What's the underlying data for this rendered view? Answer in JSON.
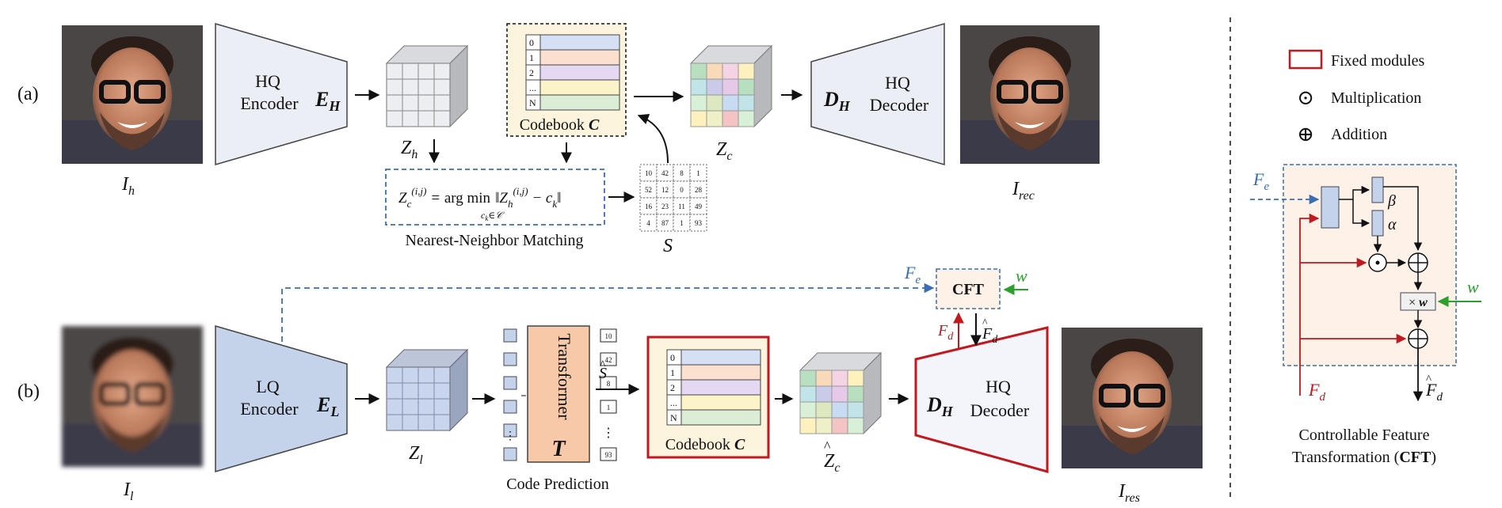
{
  "panel_a": {
    "label": "(a)",
    "encoder": {
      "line1": "HQ",
      "line2": "Encoder",
      "symbol": "E",
      "sub": "H"
    },
    "decoder": {
      "line1": "HQ",
      "line2": "Decoder",
      "symbol": "D",
      "sub": "H"
    },
    "input_label": {
      "base": "I",
      "sub": "h"
    },
    "output_label": {
      "base": "I",
      "sub": "rec"
    },
    "zh_label": {
      "base": "Z",
      "sub": "h"
    },
    "zc_label": {
      "base": "Z",
      "sub": "c"
    },
    "codebook": {
      "indices": [
        "0",
        "1",
        "2",
        "...",
        "N"
      ],
      "label": "Codebook",
      "symbol": "C"
    },
    "matching_caption": "Nearest-Neighbor Matching",
    "s_grid": [
      [
        "10",
        "42",
        "8",
        "1"
      ],
      [
        "52",
        "12",
        "0",
        "28"
      ],
      [
        "16",
        "23",
        "11",
        "49"
      ],
      [
        "4",
        "87",
        "1",
        "93"
      ]
    ],
    "s_label": "S"
  },
  "panel_b": {
    "label": "(b)",
    "encoder": {
      "line1": "LQ",
      "line2": "Encoder",
      "symbol": "E",
      "sub": "L"
    },
    "decoder": {
      "line1": "HQ",
      "line2": "Decoder",
      "symbol": "D",
      "sub": "H"
    },
    "input_label": {
      "base": "I",
      "sub": "l"
    },
    "output_label": {
      "base": "I",
      "sub": "res"
    },
    "zl_label": {
      "base": "Z",
      "sub": "l"
    },
    "zc_hat_label": {
      "base": "Z",
      "sub": "c"
    },
    "transformer": {
      "label": "Transformer",
      "symbol": "T"
    },
    "code_prediction": "Code Prediction",
    "pred_codes": [
      "10",
      "42",
      "8",
      "1",
      "...",
      "93"
    ],
    "s_hat": "S",
    "codebook": {
      "indices": [
        "0",
        "1",
        "2",
        "...",
        "N"
      ],
      "label": "Codebook",
      "symbol": "C"
    },
    "cft_label": "CFT",
    "fe_label": {
      "base": "F",
      "sub": "e"
    },
    "fd_label": {
      "base": "F",
      "sub": "d"
    },
    "w_label": "w"
  },
  "legend": {
    "fixed": "Fixed modules",
    "mult": "Multiplication",
    "add": "Addition",
    "mult_symbol": "⊙",
    "add_symbol": "⊕"
  },
  "cft_detail": {
    "fe": {
      "base": "F",
      "sub": "e"
    },
    "fd": {
      "base": "F",
      "sub": "d"
    },
    "fd_hat": {
      "base": "F",
      "sub": "d"
    },
    "beta": "β",
    "alpha": "α",
    "w": "w",
    "times_w": {
      "sym": "×",
      "w": "w"
    },
    "caption_line1": "Controllable Feature",
    "caption_line2": "Transformation (",
    "caption_bold": "CFT",
    "caption_end": ")"
  },
  "colors": {
    "encoder_fill": "#eceef6",
    "lq_encoder_fill": "#c5d3ea",
    "red": "#c0191f",
    "blue_dash": "#3b6db5",
    "green": "#2ca02c",
    "transformer_fill": "#f7c9a8",
    "codebook_bg": "#fdf4dd",
    "cft_bg": "#fdf1e8"
  },
  "codebook_row_colors": [
    "#d6e0f4",
    "#fbe0cf",
    "#e4d8f3",
    "#fdf3c9",
    "#dcedd6"
  ],
  "cube_palette": [
    "#b8e0c0",
    "#f4c4c4",
    "#c9cbe8",
    "#fff1bd",
    "#c7dcf3",
    "#f8d9b8",
    "#d8f0d8",
    "#e6c8e8",
    "#f0f0c8",
    "#c0e4e8",
    "#f4d4e4",
    "#dde8c0"
  ]
}
